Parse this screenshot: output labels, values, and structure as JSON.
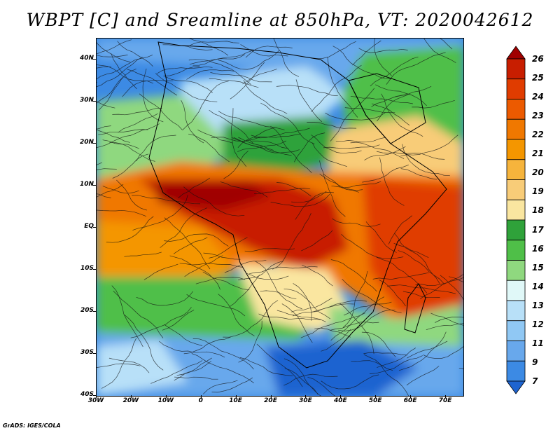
{
  "title": "WBPT [C] and Sreamline at 850hPa, VT: 2020042612",
  "map": {
    "projection": "latlon",
    "lon_range": [
      -30,
      75
    ],
    "lat_range": [
      -40,
      45
    ],
    "lat_labels": [
      "40N",
      "30N",
      "20N",
      "10N",
      "EQ",
      "10S",
      "20S",
      "30S",
      "40S"
    ],
    "lat_values": [
      40,
      30,
      20,
      10,
      0,
      -10,
      -20,
      -30,
      -40
    ],
    "lon_labels": [
      "30W",
      "20W",
      "10W",
      "0",
      "10E",
      "20E",
      "30E",
      "40E",
      "50E",
      "60E",
      "70E"
    ],
    "lon_values": [
      -30,
      -20,
      -10,
      0,
      10,
      20,
      30,
      40,
      50,
      60,
      70
    ]
  },
  "colorbar": {
    "labels": [
      "26",
      "25",
      "24",
      "23",
      "22",
      "21",
      "20",
      "19",
      "18",
      "17",
      "16",
      "15",
      "14",
      "13",
      "12",
      "11",
      "9",
      "7"
    ],
    "colors": [
      "#a00000",
      "#c81e00",
      "#e03c00",
      "#ec5a00",
      "#f07800",
      "#f49600",
      "#f6b43c",
      "#f8cc78",
      "#fae6a0",
      "#2fa23a",
      "#4fbf48",
      "#8fd87f",
      "#e0f8f8",
      "#b8e0f8",
      "#90c8f4",
      "#68a8ec",
      "#3c8ae4",
      "#1e64d0"
    ]
  },
  "credit": "GrADS: IGES/COLA"
}
